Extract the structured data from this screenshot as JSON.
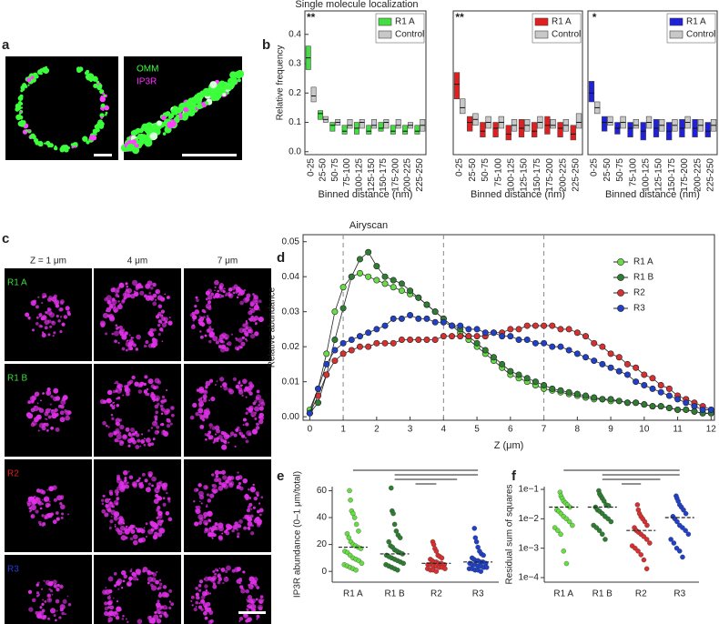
{
  "panel_labels": [
    "a",
    "b",
    "c",
    "d",
    "e",
    "f"
  ],
  "images": {
    "a": {
      "legend": [
        "OMM",
        "IP3R"
      ],
      "legend_colors": [
        "#3cff3c",
        "#ff30ff"
      ]
    },
    "c": {
      "columns": [
        "Z = 1 μm",
        "4 μm",
        "7 μm"
      ],
      "rows": [
        "R1 A",
        "R1 B",
        "R2",
        "R3"
      ],
      "row_colors": [
        "#3cdc3c",
        "#3cdc3c",
        "#e02020",
        "#2a3cd8"
      ]
    }
  },
  "chart_data": [
    {
      "type": "box",
      "title": "Single molecule localization",
      "xlabel": "Binned distance (nm)",
      "ylabel": "Relative frequency",
      "annotation": "**",
      "categories": [
        "0-25",
        "25-50",
        "50-75",
        "75-100",
        "100-125",
        "125-150",
        "150-175",
        "175-200",
        "200-225",
        "225-250"
      ],
      "ylim": [
        -0.01,
        0.48
      ],
      "yticks": [
        {
          "value": 0,
          "label": "0.0"
        },
        0.1,
        0.2,
        0.3,
        0.4
      ],
      "series": [
        {
          "name": "R1 A",
          "color": "#44dd44",
          "median": [
            0.32,
            0.13,
            0.09,
            0.07,
            0.08,
            0.07,
            0.08,
            0.07,
            0.07,
            0.07
          ],
          "q1": [
            0.28,
            0.11,
            0.07,
            0.06,
            0.06,
            0.06,
            0.07,
            0.06,
            0.06,
            0.06
          ],
          "q3": [
            0.36,
            0.14,
            0.1,
            0.09,
            0.1,
            0.09,
            0.1,
            0.09,
            0.09,
            0.09
          ]
        },
        {
          "name": "Control",
          "color": "#c8c8c8",
          "median": [
            0.19,
            0.11,
            0.1,
            0.09,
            0.1,
            0.09,
            0.1,
            0.09,
            0.09,
            0.09
          ],
          "q1": [
            0.17,
            0.1,
            0.09,
            0.08,
            0.08,
            0.08,
            0.08,
            0.08,
            0.08,
            0.07
          ],
          "q3": [
            0.22,
            0.12,
            0.11,
            0.11,
            0.11,
            0.11,
            0.11,
            0.11,
            0.1,
            0.11
          ]
        }
      ]
    },
    {
      "type": "box",
      "xlabel": "Binned distance (nm)",
      "annotation": "**",
      "categories": [
        "0-25",
        "25-50",
        "50-75",
        "75-100",
        "100-125",
        "125-150",
        "150-175",
        "175-200",
        "200-225",
        "225-250"
      ],
      "ylim": [
        -0.01,
        0.48
      ],
      "series": [
        {
          "name": "R1 A",
          "color": "#e02020",
          "median": [
            0.23,
            0.1,
            0.07,
            0.08,
            0.06,
            0.08,
            0.07,
            0.09,
            0.08,
            0.06
          ],
          "q1": [
            0.18,
            0.07,
            0.05,
            0.05,
            0.04,
            0.05,
            0.05,
            0.06,
            0.05,
            0.04
          ],
          "q3": [
            0.27,
            0.12,
            0.1,
            0.1,
            0.09,
            0.11,
            0.1,
            0.12,
            0.1,
            0.09
          ]
        },
        {
          "name": "Control",
          "color": "#c8c8c8",
          "median": [
            0.15,
            0.11,
            0.1,
            0.1,
            0.09,
            0.09,
            0.1,
            0.09,
            0.09,
            0.1
          ],
          "q1": [
            0.13,
            0.09,
            0.08,
            0.08,
            0.07,
            0.07,
            0.08,
            0.08,
            0.07,
            0.08
          ],
          "q3": [
            0.18,
            0.13,
            0.12,
            0.12,
            0.11,
            0.11,
            0.12,
            0.11,
            0.11,
            0.13
          ]
        }
      ]
    },
    {
      "type": "box",
      "xlabel": "Binned distance (nm)",
      "annotation": "*",
      "categories": [
        "0-25",
        "25-50",
        "50-75",
        "75-100",
        "100-125",
        "125-150",
        "150-175",
        "175-200",
        "200-225",
        "225-250"
      ],
      "ylim": [
        -0.01,
        0.48
      ],
      "series": [
        {
          "name": "R1 A",
          "color": "#2020d8",
          "median": [
            0.2,
            0.1,
            0.08,
            0.08,
            0.07,
            0.08,
            0.07,
            0.08,
            0.08,
            0.07
          ],
          "q1": [
            0.17,
            0.07,
            0.06,
            0.05,
            0.04,
            0.05,
            0.04,
            0.05,
            0.05,
            0.05
          ],
          "q3": [
            0.24,
            0.12,
            0.1,
            0.1,
            0.1,
            0.11,
            0.1,
            0.11,
            0.11,
            0.1
          ]
        },
        {
          "name": "Control",
          "color": "#c8c8c8",
          "median": [
            0.15,
            0.1,
            0.1,
            0.09,
            0.1,
            0.09,
            0.09,
            0.1,
            0.09,
            0.09
          ],
          "q1": [
            0.13,
            0.09,
            0.08,
            0.08,
            0.08,
            0.07,
            0.07,
            0.08,
            0.07,
            0.07
          ],
          "q3": [
            0.17,
            0.12,
            0.12,
            0.11,
            0.12,
            0.11,
            0.11,
            0.12,
            0.11,
            0.11
          ]
        }
      ]
    },
    {
      "type": "line",
      "title": "Airyscan",
      "xlabel": "Z (μm)",
      "ylabel": "Relative abundance",
      "xlim": [
        -0.2,
        12.1
      ],
      "ylim": [
        -0.001,
        0.052
      ],
      "xticks": [
        0,
        1,
        2,
        3,
        4,
        5,
        6,
        7,
        8,
        9,
        10,
        11,
        12
      ],
      "yticks": [
        {
          "value": 0,
          "label": "0.00"
        },
        0.01,
        0.02,
        0.03,
        0.04,
        0.05
      ],
      "vlines": [
        1,
        4,
        7
      ],
      "x": [
        0,
        0.25,
        0.5,
        0.75,
        1,
        1.25,
        1.5,
        1.75,
        2,
        2.25,
        2.5,
        2.75,
        3,
        3.25,
        3.5,
        3.75,
        4,
        4.25,
        4.5,
        4.75,
        5,
        5.25,
        5.5,
        5.75,
        6,
        6.25,
        6.5,
        6.75,
        7,
        7.25,
        7.5,
        7.75,
        8,
        8.25,
        8.5,
        8.75,
        9,
        9.25,
        9.5,
        9.75,
        10,
        10.25,
        10.5,
        10.75,
        11,
        11.25,
        11.5,
        11.75,
        12
      ],
      "series": [
        {
          "name": "R1 A",
          "color": "#66dd44",
          "values": [
            0.002,
            0.008,
            0.018,
            0.03,
            0.037,
            0.04,
            0.041,
            0.04,
            0.039,
            0.038,
            0.037,
            0.036,
            0.035,
            0.034,
            0.032,
            0.03,
            0.028,
            0.026,
            0.024,
            0.022,
            0.02,
            0.018,
            0.016,
            0.014,
            0.012,
            0.011,
            0.01,
            0.009,
            0.008,
            0.0075,
            0.007,
            0.0065,
            0.006,
            0.0055,
            0.005,
            0.005,
            0.0045,
            0.0045,
            0.004,
            0.004,
            0.0035,
            0.003,
            0.003,
            0.0025,
            0.002,
            0.002,
            0.0015,
            0.001,
            0.001
          ]
        },
        {
          "name": "R1 B",
          "color": "#2e7d32",
          "values": [
            0.001,
            0.004,
            0.012,
            0.022,
            0.031,
            0.04,
            0.045,
            0.047,
            0.043,
            0.04,
            0.039,
            0.038,
            0.036,
            0.034,
            0.032,
            0.03,
            0.028,
            0.026,
            0.025,
            0.023,
            0.021,
            0.019,
            0.017,
            0.015,
            0.013,
            0.012,
            0.011,
            0.01,
            0.009,
            0.008,
            0.0075,
            0.007,
            0.0065,
            0.006,
            0.0055,
            0.005,
            0.005,
            0.0045,
            0.004,
            0.004,
            0.0035,
            0.003,
            0.003,
            0.0025,
            0.002,
            0.002,
            0.0015,
            0.001,
            0.001
          ]
        },
        {
          "name": "R2",
          "color": "#d83030",
          "values": [
            0.001,
            0.006,
            0.012,
            0.016,
            0.018,
            0.019,
            0.02,
            0.02,
            0.021,
            0.021,
            0.021,
            0.022,
            0.022,
            0.022,
            0.022,
            0.022,
            0.023,
            0.023,
            0.023,
            0.023,
            0.023,
            0.023,
            0.024,
            0.024,
            0.025,
            0.025,
            0.026,
            0.026,
            0.026,
            0.026,
            0.025,
            0.025,
            0.024,
            0.023,
            0.021,
            0.02,
            0.018,
            0.017,
            0.015,
            0.014,
            0.012,
            0.011,
            0.009,
            0.008,
            0.006,
            0.005,
            0.004,
            0.003,
            0.002
          ]
        },
        {
          "name": "R3",
          "color": "#2040c8",
          "values": [
            0.001,
            0.008,
            0.015,
            0.019,
            0.021,
            0.022,
            0.023,
            0.024,
            0.025,
            0.026,
            0.028,
            0.028,
            0.029,
            0.028,
            0.028,
            0.027,
            0.027,
            0.026,
            0.026,
            0.025,
            0.025,
            0.024,
            0.024,
            0.023,
            0.023,
            0.022,
            0.022,
            0.021,
            0.021,
            0.02,
            0.02,
            0.019,
            0.018,
            0.017,
            0.016,
            0.015,
            0.014,
            0.013,
            0.012,
            0.01,
            0.009,
            0.008,
            0.007,
            0.006,
            0.005,
            0.004,
            0.003,
            0.002,
            0.002
          ]
        }
      ]
    },
    {
      "type": "strip",
      "ylabel": "IP3R abundance (0–1 μm/total)",
      "categories": [
        "R1 A",
        "R1 B",
        "R2",
        "R3"
      ],
      "colors": [
        "#66dd44",
        "#2e7d32",
        "#d83030",
        "#2040c8"
      ],
      "ylim": [
        -8,
        63
      ],
      "yticks": [
        0,
        20,
        40,
        60
      ],
      "medians": [
        18,
        13,
        6,
        7
      ],
      "points": [
        [
          60,
          53,
          45,
          43,
          40,
          35,
          30,
          28,
          25,
          22,
          20,
          19,
          18,
          17,
          15,
          14,
          12,
          10,
          9,
          8,
          6,
          5,
          4,
          3,
          2,
          1
        ],
        [
          62,
          45,
          43,
          35,
          30,
          27,
          25,
          22,
          19,
          18,
          16,
          15,
          14,
          13,
          12,
          11,
          10,
          9,
          8,
          7,
          6,
          5,
          4,
          3,
          2,
          1
        ],
        [
          22,
          20,
          17,
          15,
          12,
          11,
          10,
          9,
          8,
          7,
          7,
          6,
          6,
          5,
          5,
          5,
          4,
          4,
          3,
          3,
          2,
          2,
          1,
          1,
          0
        ],
        [
          32,
          25,
          22,
          18,
          15,
          13,
          12,
          10,
          9,
          8,
          8,
          7,
          7,
          6,
          6,
          5,
          5,
          4,
          4,
          3,
          3,
          2,
          2,
          1,
          1,
          0
        ]
      ]
    },
    {
      "type": "strip",
      "ylabel": "Residual sum of squares",
      "log": true,
      "categories": [
        "R1 A",
        "R1 B",
        "R2",
        "R3"
      ],
      "colors": [
        "#66dd44",
        "#2e7d32",
        "#d83030",
        "#2040c8"
      ],
      "ylim": [
        7e-05,
        0.124
      ],
      "yticks": [
        {
          "value": 0.0001,
          "label": "1e−4"
        },
        {
          "value": 0.001,
          "label": "1e−3"
        },
        {
          "value": 0.01,
          "label": "1e−2"
        },
        {
          "value": 0.1,
          "label": "1e−1"
        }
      ],
      "medians": [
        0.025,
        0.025,
        0.004,
        0.011
      ],
      "points": [
        [
          0.08,
          0.06,
          0.05,
          0.04,
          0.035,
          0.03,
          0.025,
          0.02,
          0.018,
          0.015,
          0.012,
          0.01,
          0.008,
          0.006,
          0.005,
          0.004,
          0.003,
          0.0008,
          0.0003
        ],
        [
          0.09,
          0.07,
          0.06,
          0.05,
          0.04,
          0.03,
          0.028,
          0.025,
          0.02,
          0.018,
          0.015,
          0.012,
          0.01,
          0.008,
          0.006,
          0.005,
          0.004,
          0.003,
          0.002
        ],
        [
          0.03,
          0.02,
          0.015,
          0.012,
          0.01,
          0.008,
          0.006,
          0.005,
          0.004,
          0.0035,
          0.003,
          0.0025,
          0.002,
          0.0015,
          0.0012,
          0.001,
          0.0008,
          0.0006,
          0.0004,
          0.0002
        ],
        [
          0.06,
          0.05,
          0.04,
          0.03,
          0.025,
          0.02,
          0.015,
          0.012,
          0.01,
          0.008,
          0.006,
          0.005,
          0.004,
          0.003,
          0.002,
          0.0015,
          0.001,
          0.0008,
          0.0005
        ]
      ]
    }
  ]
}
